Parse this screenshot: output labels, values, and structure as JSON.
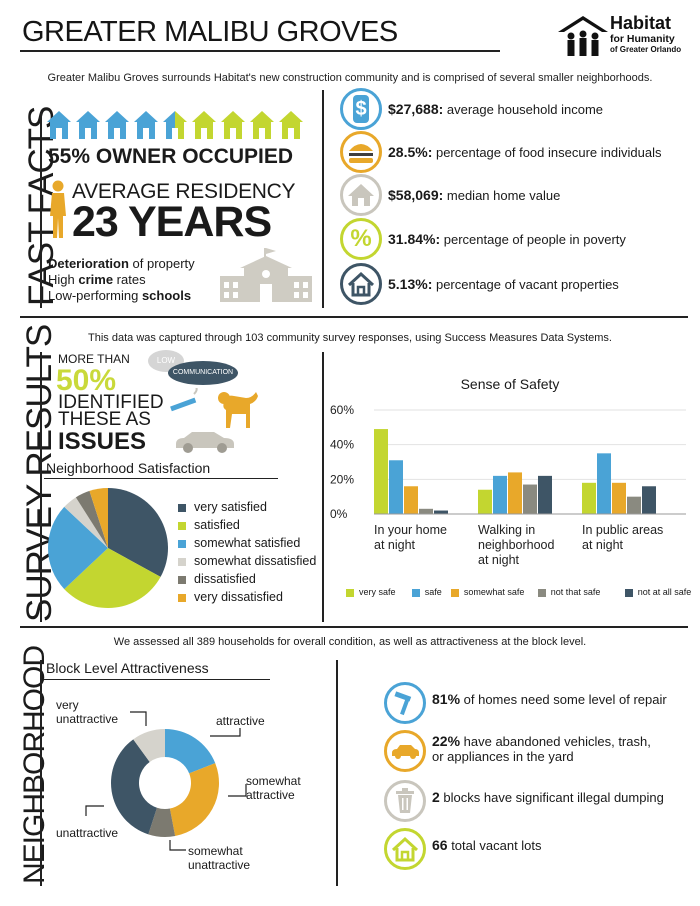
{
  "header": {
    "title": "GREATER MALIBU GROVES",
    "logo": {
      "line1": "Habitat",
      "line2": "for Humanity",
      "line3": "of Greater Orlando"
    },
    "intro": "Greater Malibu Groves surrounds Habitat's new construction community and is comprised of several smaller neighborhoods."
  },
  "fast_facts": {
    "label": "FAST FACTS",
    "owner_occupied": "55% OWNER OCCUPIED",
    "residency_line1": "AVERAGE RESIDENCY",
    "residency_line2": "23 YEARS",
    "issues": [
      {
        "bold": "Deterioration",
        "rest": " of property"
      },
      {
        "pre": "High ",
        "bold": "crime",
        "rest": " rates"
      },
      {
        "pre": "Low-performing ",
        "bold": "schools"
      }
    ],
    "facts": [
      {
        "icon": "dollar-icon",
        "value": "$27,688:",
        "text": " average household income",
        "color": "#4aa3d6"
      },
      {
        "icon": "burger-icon",
        "value": "28.5%:",
        "text": " percentage of food insecure individuals",
        "color": "#e8a82a"
      },
      {
        "icon": "house-icon",
        "value": "$58,069:",
        "text": " median home value",
        "color": "#c9c6bd"
      },
      {
        "icon": "percent-icon",
        "value": "31.84%:",
        "text": " percentage of people in poverty",
        "color": "#c3d630"
      },
      {
        "icon": "vacant-house-icon",
        "value": "5.13%:",
        "text": " percentage of vacant properties",
        "color": "#3e5566"
      }
    ]
  },
  "survey": {
    "label": "SURVEY RESULTS",
    "note": "This data was captured through 103 community survey responses, using Success Measures Data Systems.",
    "more_than": "MORE THAN",
    "fifty": "50%",
    "identified1": "IDENTIFIED",
    "identified2": "THESE AS",
    "issues": "ISSUES",
    "bubble_low": "LOW",
    "bubble_comm": "COMMUNICATION",
    "satisfaction_title": "Neighborhood Satisfaction",
    "satisfaction_legend": [
      {
        "label": "very satisfied",
        "color": "#3e5566"
      },
      {
        "label": "satisfied",
        "color": "#c3d630"
      },
      {
        "label": "somewhat satisfied",
        "color": "#4aa3d6"
      },
      {
        "label": "somewhat dissatisfied",
        "color": "#d5d3cc"
      },
      {
        "label": "dissatisfied",
        "color": "#7c7a70"
      },
      {
        "label": "very dissatisfied",
        "color": "#e8a82a"
      }
    ],
    "safety_title": "Sense of Safety"
  },
  "chart_data": [
    {
      "type": "pie",
      "title": "Neighborhood Satisfaction",
      "categories": [
        "very satisfied",
        "satisfied",
        "somewhat satisfied",
        "somewhat dissatisfied",
        "dissatisfied",
        "very dissatisfied"
      ],
      "values": [
        33,
        30,
        24,
        4,
        4,
        5
      ]
    },
    {
      "type": "bar",
      "title": "Sense of Safety",
      "categories": [
        "In your home at night",
        "Walking in neighborhood at night",
        "In public areas at night"
      ],
      "series": [
        {
          "name": "very safe",
          "color": "#c3d630",
          "values": [
            49,
            14,
            18
          ]
        },
        {
          "name": "safe",
          "color": "#4aa3d6",
          "values": [
            31,
            22,
            35
          ]
        },
        {
          "name": "somewhat safe",
          "color": "#e8a82a",
          "values": [
            16,
            24,
            18
          ]
        },
        {
          "name": "not that safe",
          "color": "#8a8a80",
          "values": [
            3,
            17,
            10
          ]
        },
        {
          "name": "not at all safe",
          "color": "#3e5566",
          "values": [
            2,
            22,
            16
          ]
        }
      ],
      "ylim": [
        0,
        60
      ],
      "yticks": [
        "0%",
        "20%",
        "40%",
        "60%"
      ]
    },
    {
      "type": "pie",
      "title": "Block Level Attractiveness",
      "categories": [
        "attractive",
        "somewhat attractive",
        "somewhat unattractive",
        "unattractive",
        "very unattractive"
      ],
      "values": [
        19,
        28,
        8,
        35,
        10
      ]
    }
  ],
  "neighborhood": {
    "label": "NEIGHBORHOOD",
    "assess": "We assessed all 389 households for overall condition, as well as attractiveness at the block level.",
    "bla_title": "Block Level Attractiveness",
    "donut_colors": [
      "#4aa3d6",
      "#e8a82a",
      "#7c7a70",
      "#3e5566",
      "#d5d3cc"
    ],
    "labels": {
      "very_unattractive1": "very",
      "very_unattractive2": "unattractive",
      "attractive": "attractive",
      "somewhat_attractive1": "somewhat",
      "somewhat_attractive2": "attractive",
      "unattractive": "unattractive",
      "somewhat_unattractive1": "somewhat",
      "somewhat_unattractive2": "unattractive"
    },
    "facts": [
      {
        "icon": "hammer-icon",
        "bold": "81%",
        "text": " of homes need some level of repair",
        "text2": "",
        "color": "#4aa3d6"
      },
      {
        "icon": "car-icon",
        "bold": "22%",
        "text": " have abandoned vehicles, trash,",
        "text2": "or appliances in the yard",
        "color": "#e8a82a"
      },
      {
        "icon": "trash-icon",
        "bold": "2",
        "text": " blocks have significant illegal dumping",
        "text2": "",
        "color": "#c9c6bd"
      },
      {
        "icon": "lot-house-icon",
        "bold": "66",
        "text": " total vacant lots",
        "text2": "",
        "color": "#c3d630"
      }
    ]
  }
}
